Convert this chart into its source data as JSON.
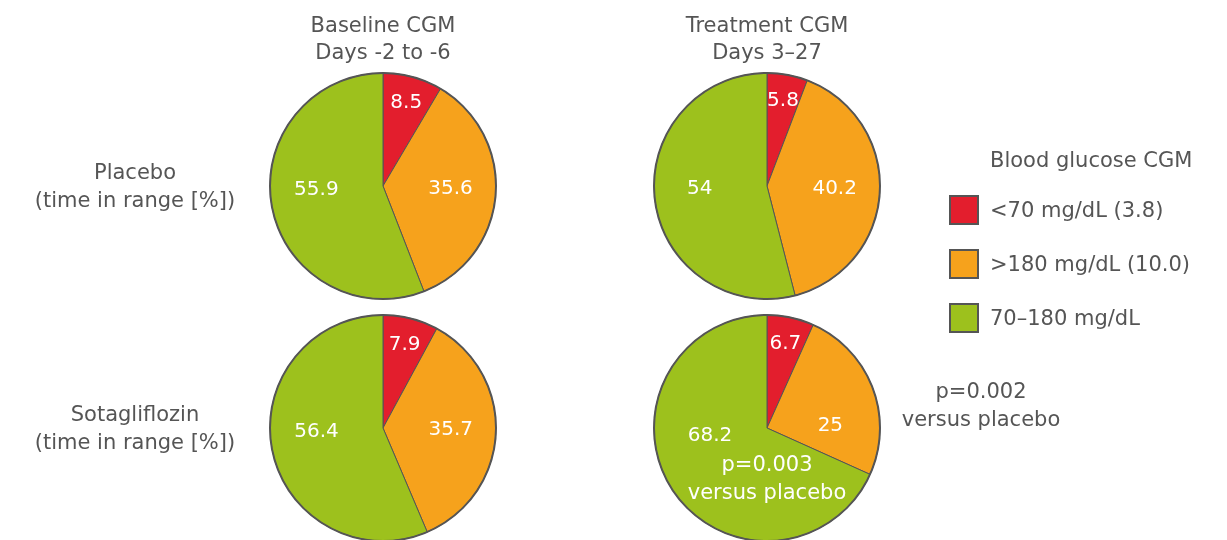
{
  "chart_data": [
    {
      "type": "pie",
      "title": "Baseline CGM\nDays -2 to -6",
      "ylabel": "Placebo\n(time in range [%])",
      "categories": [
        "<70 mg/dL (3.8)",
        ">180 mg/dL (10.0)",
        "70–180 mg/dL"
      ],
      "values": [
        8.5,
        35.6,
        55.9
      ],
      "colors": [
        "#e31e2d",
        "#f6a21c",
        "#9dc11d"
      ],
      "data_labels": true,
      "legend": "right",
      "legend_title": "Blood glucose CGM"
    },
    {
      "type": "pie",
      "title": "Treatment CGM\nDays 3–27",
      "categories": [
        null,
        null,
        null
      ],
      "values": [
        5.8,
        40.2,
        54
      ],
      "colors": [
        "#e31e2d",
        "#f6a21c",
        "#9dc11d"
      ],
      "data_labels": true
    },
    {
      "type": "pie",
      "ylabel": "Sotagliflozin\n(time in range [%])",
      "categories": [
        null,
        null,
        null
      ],
      "values": [
        7.9,
        35.7,
        56.4
      ],
      "colors": [
        "#e31e2d",
        "#f6a21c",
        "#9dc11d"
      ],
      "data_labels": true
    },
    {
      "type": "pie",
      "categories": [
        null,
        null,
        null
      ],
      "values": [
        6.7,
        25,
        68.2
      ],
      "colors": [
        "#e31e2d",
        "#f6a21c",
        "#9dc11d"
      ],
      "data_labels": true,
      "annotations": [
        "p=0.002\nversus placebo",
        "p=0.003\nversus placebo"
      ]
    }
  ]
}
